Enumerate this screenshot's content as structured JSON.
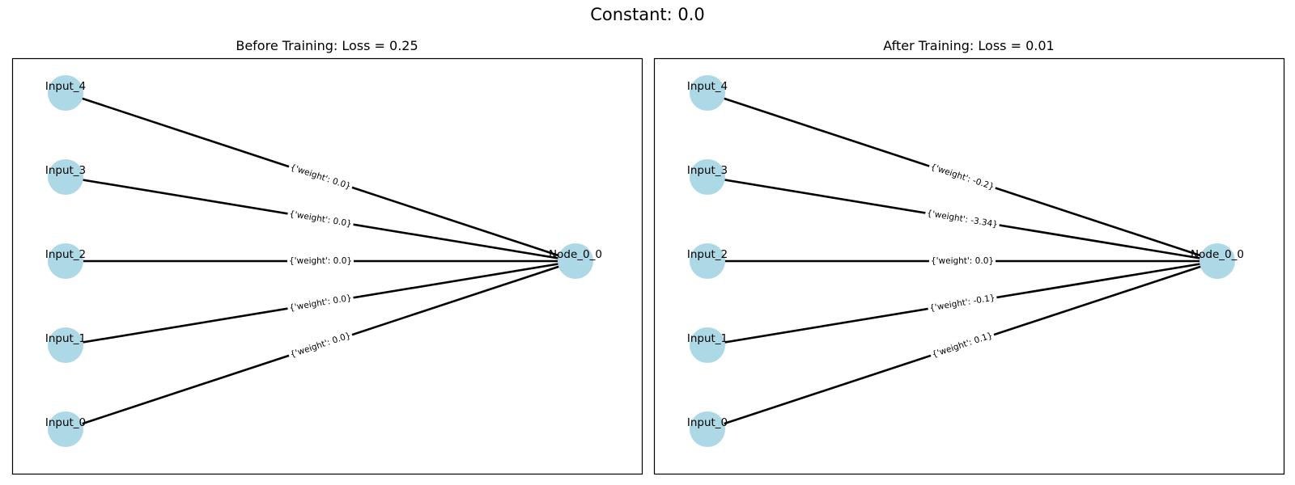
{
  "figure": {
    "title": "Constant: 0.0"
  },
  "graph": {
    "inputs": [
      "Input_0",
      "Input_1",
      "Input_2",
      "Input_3",
      "Input_4"
    ],
    "output": "Node_0_0",
    "node_color": "#add8e6",
    "edge_color": "#000000"
  },
  "panels": [
    {
      "title": "Before Training: Loss = 0.25",
      "edges": [
        {
          "source": "Input_4",
          "target": "Node_0_0",
          "label": "{'weight': 0.0}"
        },
        {
          "source": "Input_3",
          "target": "Node_0_0",
          "label": "{'weight': 0.0}"
        },
        {
          "source": "Input_2",
          "target": "Node_0_0",
          "label": "{'weight': 0.0}"
        },
        {
          "source": "Input_1",
          "target": "Node_0_0",
          "label": "{'weight': 0.0}"
        },
        {
          "source": "Input_0",
          "target": "Node_0_0",
          "label": "{'weight': 0.0}"
        }
      ]
    },
    {
      "title": "After Training: Loss = 0.01",
      "edges": [
        {
          "source": "Input_4",
          "target": "Node_0_0",
          "label": "{'weight': -0.2}"
        },
        {
          "source": "Input_3",
          "target": "Node_0_0",
          "label": "{'weight': -3.34}"
        },
        {
          "source": "Input_2",
          "target": "Node_0_0",
          "label": "{'weight': 0.0}"
        },
        {
          "source": "Input_1",
          "target": "Node_0_0",
          "label": "{'weight': -0.1}"
        },
        {
          "source": "Input_0",
          "target": "Node_0_0",
          "label": "{'weight': 0.1}"
        }
      ]
    }
  ]
}
